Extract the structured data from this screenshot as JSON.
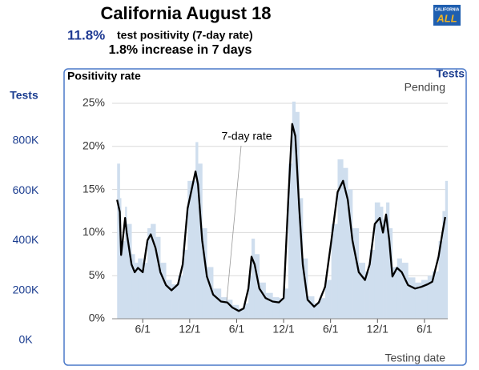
{
  "header": {
    "title": "California August 18",
    "rate": "11.8%",
    "rate_text": "test positivity (7-day rate)",
    "change": "1.8% increase in 7 days",
    "logo": {
      "top": "CALIFORNIA",
      "bottom": "ALL"
    }
  },
  "chart_data": {
    "type": "line",
    "ylabel": "Positivity rate",
    "y2label": "Tests",
    "y2label_right": "Tests",
    "status": "Pending",
    "xlabel": "Testing date",
    "xlim": [
      -0.5,
      43
    ],
    "xticks": [
      {
        "value": 3,
        "label": "6/1"
      },
      {
        "value": 9,
        "label": "12/1"
      },
      {
        "value": 15,
        "label": "6/1"
      },
      {
        "value": 21,
        "label": "12/1"
      },
      {
        "value": 27,
        "label": "6/1"
      },
      {
        "value": 33,
        "label": "12/1"
      },
      {
        "value": 39,
        "label": "6/1"
      }
    ],
    "ylim": [
      0,
      25
    ],
    "yticks": [
      {
        "value": 0,
        "label": "0%"
      },
      {
        "value": 5,
        "label": "5%"
      },
      {
        "value": 10,
        "label": "10%"
      },
      {
        "value": 15,
        "label": "15%"
      },
      {
        "value": 20,
        "label": "20%"
      },
      {
        "value": 25,
        "label": "25%"
      }
    ],
    "y2lim": [
      0,
      800000
    ],
    "y2ticks": [
      {
        "value": 0,
        "label": "0K"
      },
      {
        "value": 200000,
        "label": "200K"
      },
      {
        "value": 400000,
        "label": "400K"
      },
      {
        "value": 600000,
        "label": "600K"
      },
      {
        "value": 800000,
        "label": "800K"
      }
    ],
    "grid": true,
    "x": [
      -0.27,
      0.07,
      0.24,
      0.75,
      0.95,
      1.57,
      1.98,
      2.39,
      3,
      3.6,
      4.02,
      4.64,
      5.25,
      5.97,
      6.68,
      7.5,
      8.11,
      8.73,
      9.75,
      10.06,
      10.6,
      11.2,
      12,
      13,
      13.8,
      14.45,
      15.27,
      15.9,
      16.5,
      16.9,
      17.3,
      17.9,
      18.7,
      19.6,
      20.4,
      21,
      21.6,
      22.1,
      22.5,
      23,
      23.45,
      24.06,
      24.9,
      25.5,
      26.3,
      27.1,
      27.9,
      28.6,
      29.2,
      29.8,
      30.6,
      31.4,
      32,
      32.65,
      33.3,
      33.7,
      34.1,
      34.5,
      34.9,
      35.5,
      36.1,
      36.9,
      37.8,
      38.6,
      39.4,
      40,
      40.8,
      41.3,
      41.65
    ],
    "series": [
      {
        "name": "7-day rate",
        "color": "#000000",
        "values": [
          13.8,
          12.4,
          7.4,
          11.7,
          10,
          6.3,
          5.4,
          5.9,
          5.4,
          9.1,
          9.8,
          8.2,
          5.4,
          3.9,
          3.3,
          4.0,
          6.3,
          12.8,
          17.1,
          15.6,
          9.1,
          4.9,
          2.8,
          2.0,
          1.9,
          1.3,
          0.9,
          1.2,
          3.5,
          7.2,
          6.3,
          3.5,
          2.4,
          2.0,
          1.9,
          2.4,
          13.8,
          22.6,
          21.2,
          12.8,
          6.3,
          2.2,
          1.4,
          1.9,
          3.7,
          9.1,
          14.7,
          16.0,
          13.8,
          9.1,
          5.4,
          4.5,
          6.3,
          11,
          11.7,
          10,
          12.1,
          9.1,
          4.9,
          5.9,
          5.4,
          3.9,
          3.5,
          3.7,
          4.0,
          4.3,
          7.2,
          10,
          11.8
        ]
      },
      {
        "type": "bar",
        "color": "#cfdeee",
        "values": [
          18,
          14,
          9,
          13,
          11,
          7.5,
          6.5,
          7,
          6.5,
          10.5,
          11,
          9.5,
          6.5,
          4.5,
          4,
          5,
          8,
          16,
          20.5,
          18,
          10.5,
          6,
          3.5,
          2.5,
          2.2,
          1.6,
          1.2,
          1.8,
          5,
          9.3,
          7.5,
          4.2,
          3,
          2.5,
          2.4,
          3.5,
          18,
          25.2,
          24,
          14,
          7,
          2.6,
          1.8,
          2.4,
          4.5,
          11,
          18.5,
          17.5,
          15,
          10.5,
          6.5,
          5.5,
          8,
          13.5,
          13,
          11.5,
          13.5,
          10.5,
          6,
          7,
          6.5,
          4.8,
          4.2,
          4.5,
          5,
          5.5,
          9,
          12.5,
          16
        ]
      }
    ]
  }
}
